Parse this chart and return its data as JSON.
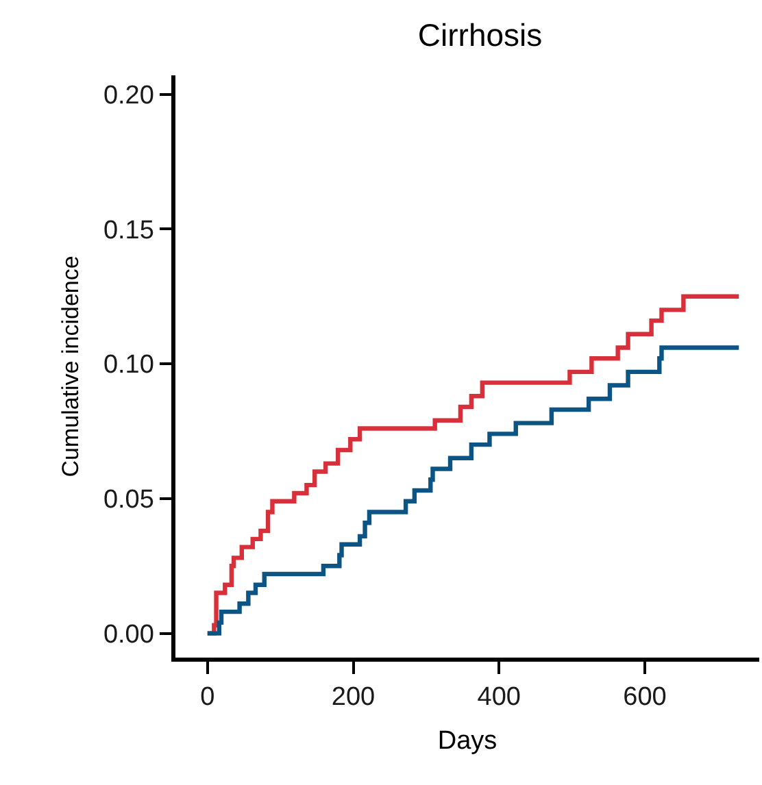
{
  "chart_data": {
    "type": "step",
    "title": "Cirrhosis",
    "xlabel": "Days",
    "ylabel": "Cumulative incidence",
    "series": [
      {
        "color": "#d7303a",
        "x": [
          0,
          9,
          12,
          24,
          33,
          36,
          47,
          62,
          73,
          83,
          89,
          119,
          136,
          147,
          162,
          179,
          196,
          209,
          312,
          347,
          362,
          377,
          497,
          527,
          563,
          577,
          609,
          623,
          653,
          729
        ],
        "values": [
          0,
          0.003,
          0.015,
          0.018,
          0.025,
          0.028,
          0.032,
          0.035,
          0.038,
          0.045,
          0.049,
          0.052,
          0.055,
          0.06,
          0.063,
          0.068,
          0.072,
          0.076,
          0.079,
          0.084,
          0.088,
          0.093,
          0.097,
          0.102,
          0.106,
          0.111,
          0.116,
          0.12,
          0.125,
          0.125
        ]
      },
      {
        "color": "#0b5484",
        "x": [
          0,
          16,
          19,
          44,
          56,
          66,
          78,
          159,
          181,
          184,
          209,
          216,
          222,
          272,
          284,
          306,
          309,
          333,
          362,
          387,
          423,
          472,
          523,
          552,
          577,
          620,
          623,
          729
        ],
        "values": [
          0,
          0.004,
          0.008,
          0.011,
          0.015,
          0.018,
          0.022,
          0.025,
          0.029,
          0.033,
          0.036,
          0.041,
          0.045,
          0.049,
          0.053,
          0.057,
          0.061,
          0.065,
          0.07,
          0.074,
          0.078,
          0.083,
          0.087,
          0.092,
          0.097,
          0.102,
          0.106,
          0.106
        ]
      }
    ],
    "xlim": [
      -44,
      757
    ],
    "xticks": [
      0,
      200,
      400,
      600
    ],
    "ylim": [
      -0.009,
      0.207
    ],
    "yticks": [
      {
        "value": 0,
        "label": "0.00"
      },
      {
        "value": 0.05,
        "label": "0.05"
      },
      {
        "value": 0.1,
        "label": "0.10"
      },
      {
        "value": 0.15,
        "label": "0.15"
      },
      {
        "value": 0.2,
        "label": "0.20"
      }
    ]
  }
}
